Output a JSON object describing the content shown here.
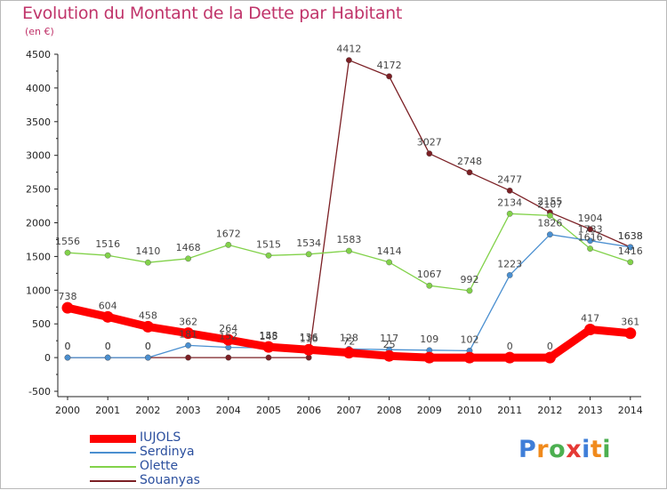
{
  "header": {
    "title": "Evolution du Montant de la Dette par Habitant",
    "subtitle": "(en €)"
  },
  "logo": {
    "letters": [
      "P",
      "r",
      "o",
      "x",
      "i",
      "t",
      "i"
    ],
    "colors": [
      "#3f7ed8",
      "#f08a1c",
      "#4caf50",
      "#e53935",
      "#3f7ed8",
      "#f08a1c",
      "#4caf50"
    ]
  },
  "chart_data": {
    "type": "line",
    "title": "Evolution du Montant de la Dette par Habitant",
    "subtitle": "(en €)",
    "xlabel": "",
    "ylabel": "",
    "x": [
      "2000",
      "2001",
      "2002",
      "2003",
      "2004",
      "2005",
      "2006",
      "2007",
      "2008",
      "2009",
      "2010",
      "2011",
      "2012",
      "2013",
      "2014"
    ],
    "ylim": [
      -500,
      4500
    ],
    "yticks": [
      -500,
      0,
      500,
      1000,
      1500,
      2000,
      2500,
      3000,
      3500,
      4000,
      4500
    ],
    "grid": false,
    "legend_position": "bottom-left",
    "series": [
      {
        "name": "IUJOLS",
        "color": "#ff0000",
        "values": [
          738,
          604,
          458,
          362,
          264,
          158,
          116,
          72,
          25,
          0,
          0,
          0,
          0,
          417,
          361
        ],
        "labels": [
          "738",
          "604",
          "458",
          "362",
          "264",
          "158",
          "116",
          "72",
          "25",
          "",
          "",
          "0",
          "0",
          "417",
          "361"
        ]
      },
      {
        "name": "Serdinya",
        "color": "#4a8fd0",
        "values": [
          0,
          0,
          0,
          181,
          152,
          145,
          136,
          128,
          117,
          109,
          102,
          1223,
          1826,
          1733,
          1638
        ],
        "labels": [
          "0",
          "0",
          "0",
          "181",
          "152",
          "145",
          "136",
          "128",
          "117",
          "109",
          "102",
          "1223",
          "1826",
          "1733",
          "1638"
        ]
      },
      {
        "name": "Olette",
        "color": "#82d24a",
        "values": [
          1556,
          1516,
          1410,
          1468,
          1672,
          1515,
          1534,
          1583,
          1414,
          1067,
          992,
          2134,
          2107,
          1616,
          1416
        ],
        "labels": [
          "1556",
          "1516",
          "1410",
          "1468",
          "1672",
          "1515",
          "1534",
          "1583",
          "1414",
          "1067",
          "992",
          "2134",
          "2107",
          "1616",
          "1416"
        ]
      },
      {
        "name": "Souanyas",
        "color": "#7b1f24",
        "values": [
          0,
          0,
          0,
          0,
          0,
          0,
          0,
          4412,
          4172,
          3027,
          2748,
          2477,
          2155,
          1904,
          1638
        ],
        "labels": [
          "0",
          "0",
          "0",
          "",
          "",
          "",
          "",
          "4412",
          "4172",
          "3027",
          "2748",
          "2477",
          "2155",
          "1904",
          "1638"
        ]
      }
    ]
  }
}
